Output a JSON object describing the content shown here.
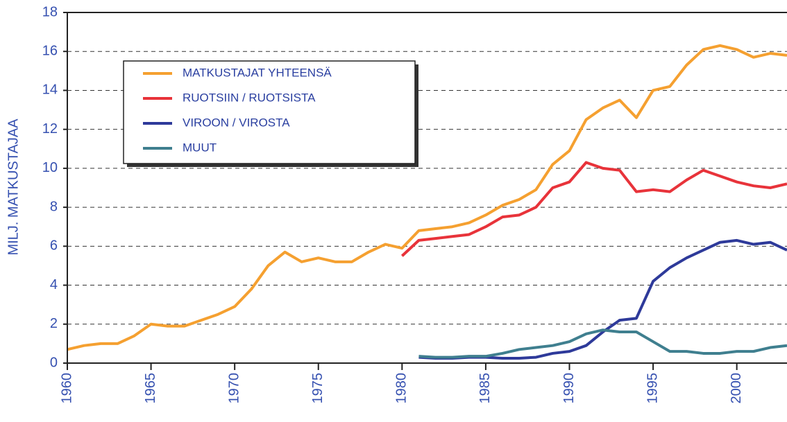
{
  "chart_data": {
    "type": "line",
    "y_label": "MILJ. MATKUSTAJAA",
    "x": [
      1960,
      1961,
      1962,
      1963,
      1964,
      1965,
      1966,
      1967,
      1968,
      1969,
      1970,
      1971,
      1972,
      1973,
      1974,
      1975,
      1976,
      1977,
      1978,
      1979,
      1980,
      1981,
      1982,
      1983,
      1984,
      1985,
      1986,
      1987,
      1988,
      1989,
      1990,
      1991,
      1992,
      1993,
      1994,
      1995,
      1996,
      1997,
      1998,
      1999,
      2000,
      2001,
      2002,
      2003
    ],
    "series": [
      {
        "name": "MATKUSTAJAT YHTEENSÄ",
        "color": "#f5a030",
        "values": [
          0.7,
          0.9,
          1.0,
          1.0,
          1.4,
          2.0,
          1.9,
          1.9,
          2.2,
          2.5,
          2.9,
          3.8,
          5.0,
          5.7,
          5.2,
          5.4,
          5.2,
          5.2,
          5.7,
          6.1,
          5.9,
          6.8,
          6.9,
          7.0,
          7.2,
          7.6,
          8.1,
          8.4,
          8.9,
          10.2,
          10.9,
          12.5,
          13.1,
          13.5,
          12.6,
          14.0,
          14.2,
          15.3,
          16.1,
          16.3,
          16.1,
          15.7,
          15.9,
          15.8
        ]
      },
      {
        "name": "RUOTSIIN / RUOTSISTA",
        "color": "#e8333a",
        "values": [
          null,
          null,
          null,
          null,
          null,
          null,
          null,
          null,
          null,
          null,
          null,
          null,
          null,
          null,
          null,
          null,
          null,
          null,
          null,
          null,
          5.5,
          6.3,
          6.4,
          6.5,
          6.6,
          7.0,
          7.5,
          7.6,
          8.0,
          9.0,
          9.3,
          10.3,
          10.0,
          9.9,
          8.8,
          8.9,
          8.8,
          9.4,
          9.9,
          9.6,
          9.3,
          9.1,
          9.0,
          9.2
        ]
      },
      {
        "name": "VIROON / VIROSTA",
        "color": "#2e3a9a",
        "values": [
          null,
          null,
          null,
          null,
          null,
          null,
          null,
          null,
          null,
          null,
          null,
          null,
          null,
          null,
          null,
          null,
          null,
          null,
          null,
          null,
          null,
          0.3,
          0.25,
          0.25,
          0.3,
          0.3,
          0.25,
          0.25,
          0.3,
          0.5,
          0.6,
          0.9,
          1.6,
          2.2,
          2.3,
          4.2,
          4.9,
          5.4,
          5.8,
          6.2,
          6.3,
          6.1,
          6.2,
          5.8
        ]
      },
      {
        "name": "MUUT",
        "color": "#3f7f8f",
        "values": [
          null,
          null,
          null,
          null,
          null,
          null,
          null,
          null,
          null,
          null,
          null,
          null,
          null,
          null,
          null,
          null,
          null,
          null,
          null,
          null,
          null,
          0.35,
          0.3,
          0.3,
          0.35,
          0.35,
          0.5,
          0.7,
          0.8,
          0.9,
          1.1,
          1.5,
          1.7,
          1.6,
          1.6,
          1.1,
          0.6,
          0.6,
          0.5,
          0.5,
          0.6,
          0.6,
          0.8,
          0.9
        ]
      }
    ],
    "xlim": [
      1960,
      2003
    ],
    "xticks": [
      1960,
      1965,
      1970,
      1975,
      1980,
      1985,
      1990,
      1995,
      2000
    ],
    "ylim": [
      0,
      18
    ],
    "yticks": [
      0,
      2,
      4,
      6,
      8,
      10,
      12,
      14,
      16,
      18
    ],
    "grid": true,
    "legend": "upper left"
  }
}
